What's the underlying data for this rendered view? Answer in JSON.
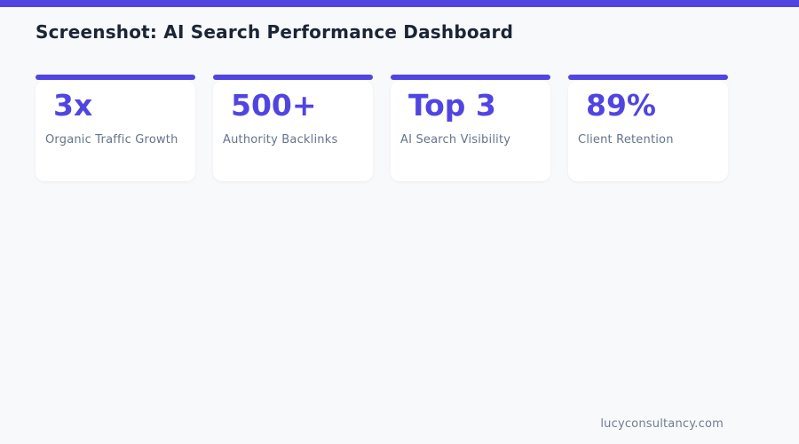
{
  "page": {
    "title": "Screenshot: AI Search Performance Dashboard",
    "footer_url": "lucyconsultancy.com"
  },
  "theme": {
    "accent": "#5145e1",
    "background": "#f8f9fb",
    "card_background": "#ffffff",
    "title_color": "#1c2536",
    "label_color": "#64748b",
    "footer_color": "#6f7e90"
  },
  "stats": [
    {
      "value": "3x",
      "label": "Organic Traffic Growth"
    },
    {
      "value": "500+",
      "label": "Authority Backlinks"
    },
    {
      "value": "Top 3",
      "label": "AI Search Visibility"
    },
    {
      "value": "89%",
      "label": "Client Retention"
    }
  ]
}
